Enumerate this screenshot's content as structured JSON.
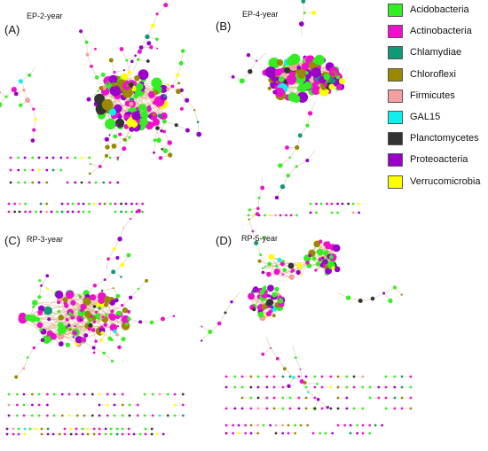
{
  "panels": [
    {
      "id": "A",
      "label": "(A)",
      "title": "EP-2-year"
    },
    {
      "id": "B",
      "label": "(B)",
      "title": "EP-4-year"
    },
    {
      "id": "C",
      "label": "(C)",
      "title": "RP-3-year"
    },
    {
      "id": "D",
      "label": "(D)",
      "title": "RP-5-year"
    }
  ],
  "legend": [
    {
      "name": "Acidobacteria",
      "color": "#33ee22"
    },
    {
      "name": "Actinobacteria",
      "color": "#ee11cc"
    },
    {
      "name": "Chlamydiae",
      "color": "#119977"
    },
    {
      "name": "Chloroflexi",
      "color": "#998800"
    },
    {
      "name": "Firmicutes",
      "color": "#f4a0a0"
    },
    {
      "name": "GAL15",
      "color": "#11eeee"
    },
    {
      "name": "Planctomycetes",
      "color": "#333333"
    },
    {
      "name": "Proteoacteria",
      "color": "#9900cc"
    },
    {
      "name": "Verrucomicrobia",
      "color": "#ffff00"
    }
  ]
}
